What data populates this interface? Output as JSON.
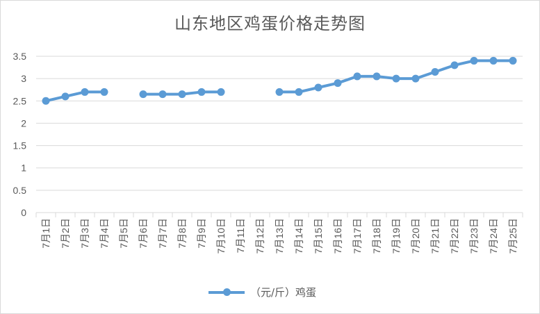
{
  "chart_data": {
    "type": "line",
    "title": "山东地区鸡蛋价格走势图",
    "xlabel": "",
    "ylabel": "",
    "categories": [
      "7月1日",
      "7月2日",
      "7月3日",
      "7月4日",
      "7月5日",
      "7月6日",
      "7月7日",
      "7月8日",
      "7月9日",
      "7月10日",
      "7月11日",
      "7月12日",
      "7月13日",
      "7月14日",
      "7月15日",
      "7月16日",
      "7月17日",
      "7月18日",
      "7月19日",
      "7月20日",
      "7月21日",
      "7月22日",
      "7月23日",
      "7月24日",
      "7月25日"
    ],
    "ylim": [
      0,
      3.5
    ],
    "yticks": [
      "0",
      "0.5",
      "1",
      "1.5",
      "2",
      "2.5",
      "3",
      "3.5"
    ],
    "grid": true,
    "legend_position": "bottom",
    "colors": {
      "series": "#5b9bd5",
      "grid": "#d9d9d9",
      "text": "#595959"
    },
    "series": [
      {
        "name": "（元/斤）鸡蛋",
        "values": [
          2.5,
          2.6,
          2.7,
          2.7,
          null,
          2.65,
          2.65,
          2.65,
          2.7,
          2.7,
          null,
          null,
          2.7,
          2.7,
          2.8,
          2.9,
          3.05,
          3.05,
          3.0,
          3.0,
          3.15,
          3.3,
          3.4,
          3.4,
          3.4
        ]
      }
    ]
  }
}
